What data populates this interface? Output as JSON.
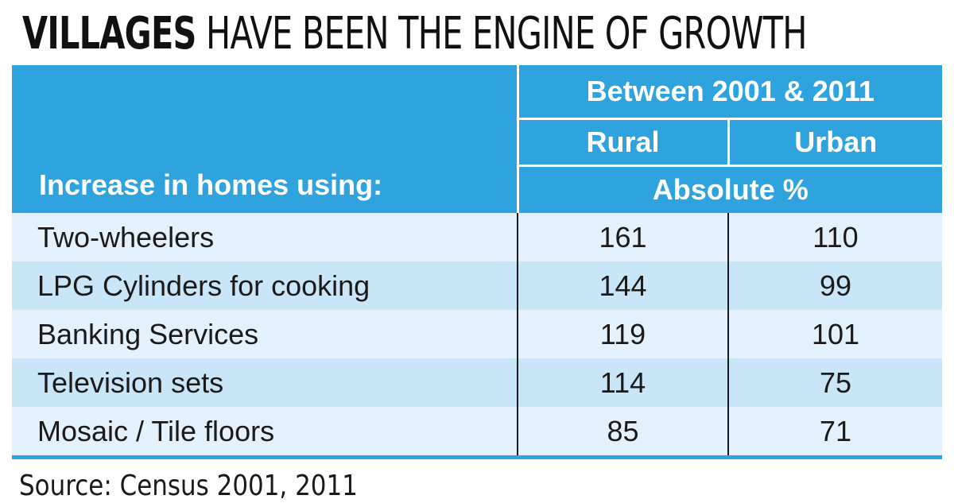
{
  "title": {
    "strong": "VILLAGES",
    "rest": " HAVE BEEN THE ENGINE OF GROWTH"
  },
  "table": {
    "row_header": "Increase in homes using:",
    "period": "Between 2001 & 2011",
    "unit": "Absolute %"
  },
  "source": "Source: Census 2001, 2011",
  "colors": {
    "header_blue": "#2ea3dd",
    "row_light": "#e2f1fb",
    "row_dark": "#c9e6f8"
  },
  "chart_data": {
    "type": "table",
    "title": "VILLAGES HAVE BEEN THE ENGINE OF GROWTH",
    "columns": [
      "Increase in homes using:",
      "Rural",
      "Urban"
    ],
    "categories": [
      "Two-wheelers",
      "LPG Cylinders for cooking",
      "Banking Services",
      "Television sets",
      "Mosaic / Tile floors"
    ],
    "series": [
      {
        "name": "Rural",
        "values": [
          161,
          144,
          119,
          114,
          85
        ]
      },
      {
        "name": "Urban",
        "values": [
          110,
          99,
          101,
          75,
          71
        ]
      }
    ]
  }
}
